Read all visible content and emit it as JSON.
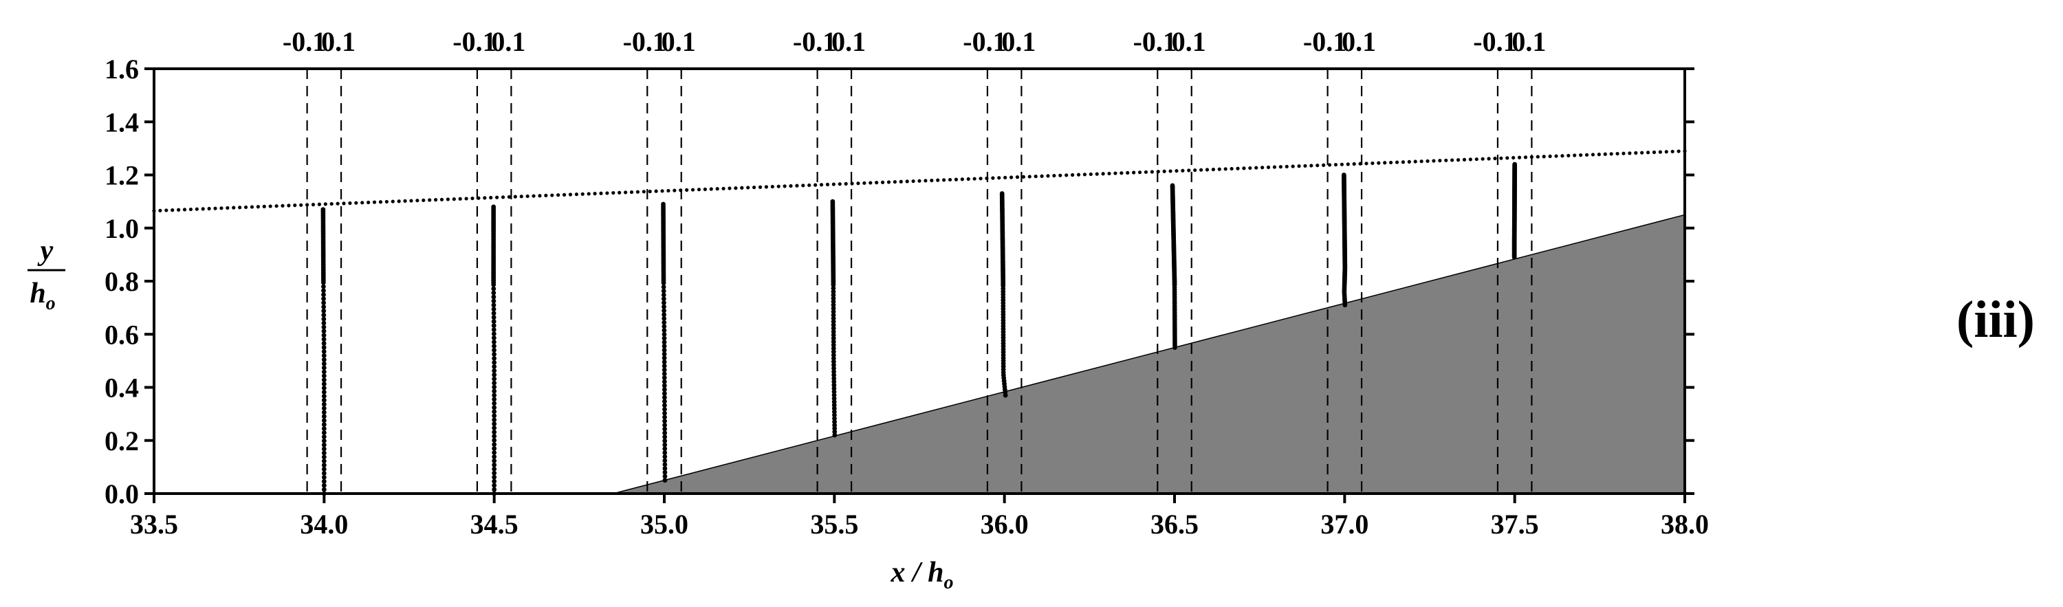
{
  "panel_label": "(iii)",
  "chart_data": {
    "type": "scatter",
    "xlabel": "x / h",
    "xlabel_sub": "o",
    "ylabel_num": "y",
    "ylabel_den": "h",
    "ylabel_den_sub": "o",
    "xlim": [
      33.5,
      38.0
    ],
    "ylim": [
      0.0,
      1.6
    ],
    "x_ticks": [
      "33.5",
      "34.0",
      "34.5",
      "35.0",
      "35.5",
      "36.0",
      "36.5",
      "37.0",
      "37.5",
      "38.0"
    ],
    "x_tick_values": [
      33.5,
      34.0,
      34.5,
      35.0,
      35.5,
      36.0,
      36.5,
      37.0,
      37.5,
      38.0
    ],
    "y_ticks": [
      "0.0",
      "0.2",
      "0.4",
      "0.6",
      "0.8",
      "1.0",
      "1.2",
      "1.4",
      "1.6"
    ],
    "y_tick_values": [
      0.0,
      0.2,
      0.4,
      0.6,
      0.8,
      1.0,
      1.2,
      1.4,
      1.6
    ],
    "top_scale_labels": [
      "-0.1",
      "0.1"
    ],
    "top_scale_offset": 0.1,
    "profile_scale": 0.5,
    "free_surface": {
      "x": [
        33.5,
        38.0
      ],
      "y": [
        1.065,
        1.29
      ]
    },
    "bed": {
      "x": [
        34.85,
        38.0
      ],
      "y": [
        0.0,
        1.05
      ]
    },
    "grid": false,
    "profiles": [
      {
        "station": 34.0,
        "y_bottom": 0.0,
        "y_top": 1.07,
        "u": [
          [
            0.0,
            0.0
          ],
          [
            0.5,
            0.0
          ],
          [
            0.8,
            -0.004
          ],
          [
            1.07,
            -0.006
          ]
        ]
      },
      {
        "station": 34.5,
        "y_bottom": 0.0,
        "y_top": 1.08,
        "u": [
          [
            0.0,
            0.0
          ],
          [
            0.5,
            0.0
          ],
          [
            0.8,
            -0.004
          ],
          [
            1.08,
            -0.004
          ]
        ]
      },
      {
        "station": 35.0,
        "y_bottom": 0.05,
        "y_top": 1.09,
        "u": [
          [
            0.05,
            0.004
          ],
          [
            0.3,
            0.002
          ],
          [
            0.6,
            0.0
          ],
          [
            0.8,
            -0.004
          ],
          [
            1.09,
            -0.006
          ]
        ]
      },
      {
        "station": 35.5,
        "y_bottom": 0.22,
        "y_top": 1.1,
        "u": [
          [
            0.22,
            0.002
          ],
          [
            0.5,
            -0.004
          ],
          [
            0.8,
            -0.006
          ],
          [
            1.1,
            -0.01
          ]
        ]
      },
      {
        "station": 36.0,
        "y_bottom": 0.37,
        "y_top": 1.13,
        "u": [
          [
            0.37,
            0.006
          ],
          [
            0.45,
            -0.006
          ],
          [
            0.8,
            -0.008
          ],
          [
            1.13,
            -0.014
          ]
        ]
      },
      {
        "station": 36.5,
        "y_bottom": 0.55,
        "y_top": 1.16,
        "u": [
          [
            0.55,
            0.002
          ],
          [
            0.8,
            0.0
          ],
          [
            1.16,
            -0.012
          ]
        ]
      },
      {
        "station": 37.0,
        "y_bottom": 0.71,
        "y_top": 1.2,
        "u": [
          [
            0.71,
            0.002
          ],
          [
            0.76,
            -0.002
          ],
          [
            0.85,
            0.002
          ],
          [
            1.2,
            -0.004
          ]
        ]
      },
      {
        "station": 37.5,
        "y_bottom": 0.89,
        "y_top": 1.24,
        "u": [
          [
            0.89,
            -0.002
          ],
          [
            0.95,
            -0.002
          ],
          [
            1.24,
            0.0
          ]
        ]
      }
    ]
  }
}
